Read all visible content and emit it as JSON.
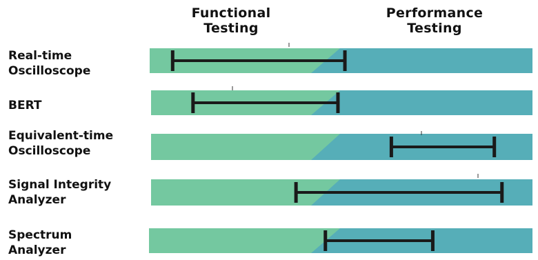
{
  "headers": {
    "functional": [
      "Functional",
      "Testing"
    ],
    "performance": [
      "Performance",
      "Testing"
    ]
  },
  "colors": {
    "functional_band": "#74c8a0",
    "performance_band": "#56aeb8",
    "range_bar": "#1a1a1a"
  },
  "rows": [
    {
      "label": [
        "Real-time",
        "Oscilloscope"
      ],
      "range": [
        0.06,
        0.51
      ]
    },
    {
      "label": [
        "BERT"
      ],
      "range": [
        0.11,
        0.49
      ]
    },
    {
      "label": [
        "Equivalent-time",
        "Oscilloscope"
      ],
      "range": [
        0.63,
        0.9
      ]
    },
    {
      "label": [
        "Signal Integrity",
        "Analyzer"
      ],
      "range": [
        0.38,
        0.92
      ]
    },
    {
      "label": [
        "Spectrum",
        "Analyzer"
      ],
      "range": [
        0.46,
        0.74
      ]
    }
  ]
}
